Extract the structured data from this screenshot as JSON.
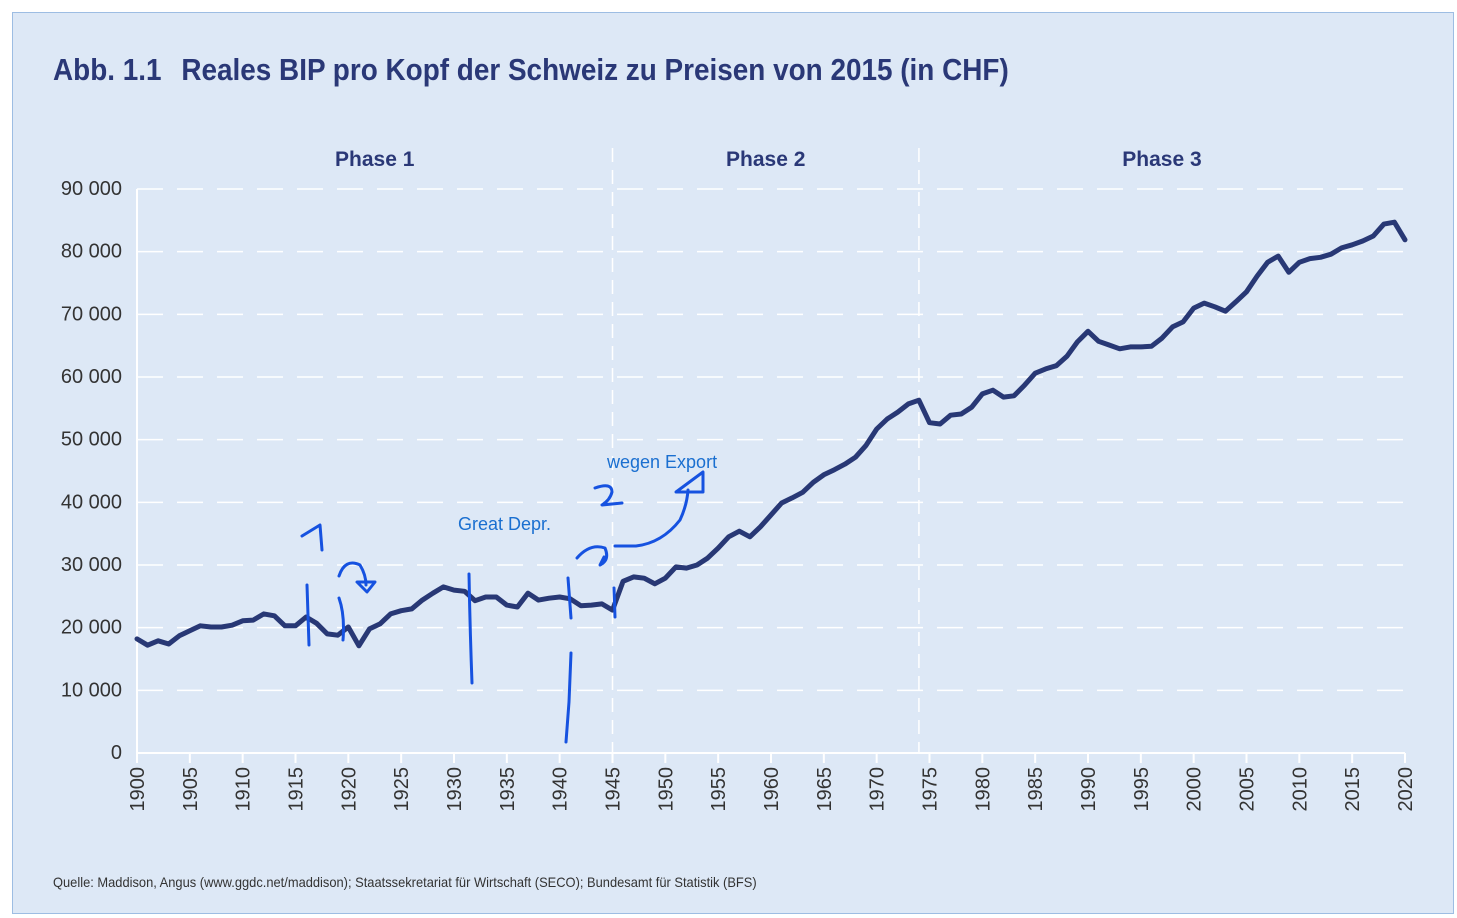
{
  "title": {
    "number": "Abb. 1.1",
    "text": "Reales BIP pro Kopf der Schweiz zu Preisen von 2015 (in CHF)"
  },
  "source": "Quelle: Maddison, Angus (www.ggdc.net/maddison); Staatssekretariat für Wirtschaft (SECO); Bundesamt für Statistik (BFS)",
  "annotations": {
    "great_depression": "Great Depr.",
    "export": "wegen Export",
    "mark_1": "1",
    "mark_2": "2"
  },
  "colors": {
    "line": "#283875",
    "background": "#dde8f6",
    "grid": "#ffffff",
    "annotation": "#1652e0"
  },
  "chart_data": {
    "type": "line",
    "title": "Reales BIP pro Kopf der Schweiz zu Preisen von 2015 (in CHF)",
    "xlabel": "",
    "ylabel": "",
    "xlim": [
      1900,
      2020
    ],
    "ylim": [
      0,
      90000
    ],
    "grid": "horizontal dashed",
    "x_ticks": [
      "1900",
      "1905",
      "1910",
      "1915",
      "1920",
      "1925",
      "1930",
      "1935",
      "1940",
      "1945",
      "1950",
      "1955",
      "1960",
      "1965",
      "1970",
      "1975",
      "1980",
      "1985",
      "1990",
      "1995",
      "2000",
      "2005",
      "2010",
      "2015",
      "2020"
    ],
    "y_ticks": [
      "0",
      "10 000",
      "20 000",
      "30 000",
      "40 000",
      "50 000",
      "60 000",
      "70 000",
      "80 000",
      "90 000"
    ],
    "phases": [
      {
        "label": "Phase 1",
        "from": 1900,
        "to": 1945
      },
      {
        "label": "Phase 2",
        "from": 1945,
        "to": 1974
      },
      {
        "label": "Phase 3",
        "from": 1974,
        "to": 2020
      }
    ],
    "start_year": 1900,
    "values": [
      18200,
      17200,
      17900,
      17400,
      18700,
      19500,
      20300,
      20100,
      20100,
      20400,
      21100,
      21200,
      22200,
      21900,
      20300,
      20300,
      21700,
      20700,
      19000,
      18800,
      20100,
      17100,
      19800,
      20600,
      22200,
      22700,
      23000,
      24400,
      25500,
      26500,
      26000,
      25800,
      24300,
      24900,
      24900,
      23600,
      23300,
      25500,
      24400,
      24700,
      24900,
      24600,
      23500,
      23600,
      23800,
      22800,
      27400,
      28100,
      27900,
      27000,
      27900,
      29700,
      29500,
      30000,
      31100,
      32700,
      34500,
      35400,
      34500,
      36100,
      38000,
      39900,
      40700,
      41600,
      43200,
      44400,
      45200,
      46100,
      47200,
      49100,
      51700,
      53300,
      54400,
      55700,
      56300,
      52700,
      52500,
      53900,
      54100,
      55200,
      57300,
      57900,
      56800,
      57000,
      58700,
      60600,
      61300,
      61800,
      63300,
      65600,
      67300,
      65700,
      65100,
      64500,
      64800,
      64800,
      64900,
      66200,
      68000,
      68800,
      71000,
      71800,
      71200,
      70500,
      72000,
      73600,
      76100,
      78300,
      79300,
      76700,
      78300,
      78900,
      79100,
      79600,
      80600,
      81100,
      81700,
      82500,
      84400,
      84700,
      81900
    ]
  }
}
